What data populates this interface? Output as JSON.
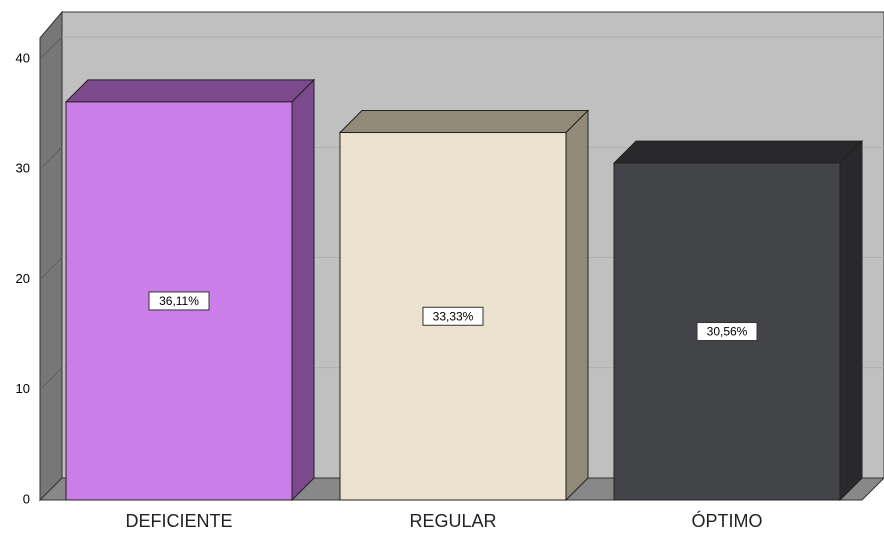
{
  "chart_data": {
    "type": "bar",
    "categories": [
      "DEFICIENTE",
      "REGULAR",
      "ÓPTIMO"
    ],
    "values": [
      36.11,
      33.33,
      30.56
    ],
    "value_labels": [
      "36,11%",
      "33,33%",
      "30,56%"
    ],
    "colors": [
      "#cc7ee8",
      "#ebe3cf",
      "#434447"
    ],
    "side_colors": [
      "#7b4a8c",
      "#918a78",
      "#29292b"
    ],
    "ylim": [
      0,
      40
    ],
    "yticks": [
      0,
      10,
      20,
      30,
      40
    ],
    "grid": true
  }
}
